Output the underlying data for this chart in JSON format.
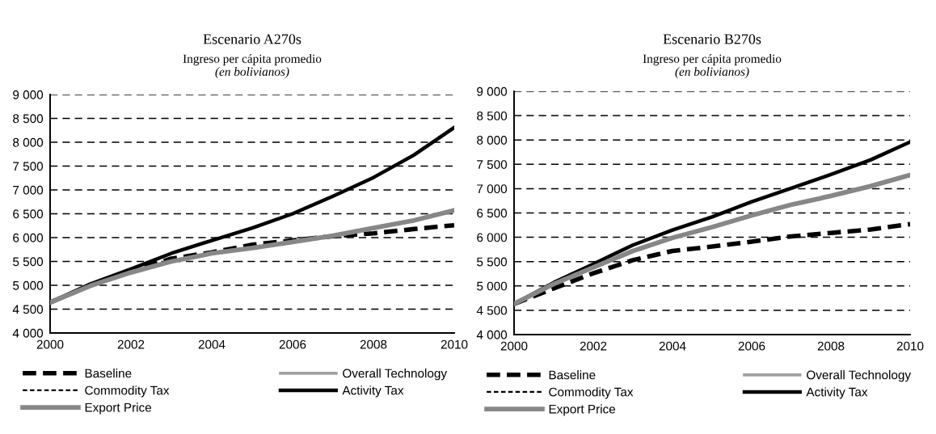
{
  "chart_data": [
    {
      "type": "line",
      "title": "Escenario A270s",
      "subtitle": "Ingreso per cápita promedio",
      "annotations": [
        "(en bolivianos)"
      ],
      "x": [
        2000,
        2001,
        2002,
        2003,
        2004,
        2005,
        2006,
        2007,
        2008,
        2009,
        2010
      ],
      "xlim": [
        2000,
        2010
      ],
      "xticks": [
        2000,
        2002,
        2004,
        2006,
        2008,
        2010
      ],
      "ylim": [
        4000,
        9000
      ],
      "yticks": [
        {
          "value": 4000,
          "label": "4 000"
        },
        {
          "value": 4500,
          "label": "4 500"
        },
        {
          "value": 5000,
          "label": "5 000"
        },
        {
          "value": 5500,
          "label": "5 500"
        },
        {
          "value": 6000,
          "label": "6 000"
        },
        {
          "value": 6500,
          "label": "6 500"
        },
        {
          "value": 7000,
          "label": "7 000"
        },
        {
          "value": 7500,
          "label": "7 500"
        },
        {
          "value": 8000,
          "label": "8 000"
        },
        {
          "value": 8500,
          "label": "8 500"
        },
        {
          "value": 9000,
          "label": "9 000"
        }
      ],
      "grid": "y",
      "legend": "bottom",
      "marker": "none",
      "series": [
        {
          "name": "Baseline",
          "color": "#000000",
          "line_style": "dashed",
          "values": [
            4640,
            5000,
            5290,
            5560,
            5690,
            5850,
            5940,
            6030,
            6090,
            6180,
            6260
          ]
        },
        {
          "name": "Overall Technology",
          "color": "#a0a0a0",
          "line_style": "solid",
          "values": [
            null,
            null,
            null,
            null,
            null,
            null,
            null,
            null,
            null,
            null,
            null
          ]
        },
        {
          "name": "Commodity Tax",
          "color": "#000000",
          "line_style": "dotted",
          "values": [
            null,
            null,
            null,
            null,
            null,
            null,
            null,
            null,
            null,
            null,
            null
          ]
        },
        {
          "name": "Activity Tax",
          "color": "#000000",
          "line_style": "solid",
          "values": [
            4640,
            5030,
            5340,
            5670,
            5940,
            6200,
            6500,
            6870,
            7260,
            7730,
            8310
          ]
        },
        {
          "name": "Export Price",
          "color": "#878787",
          "line_style": "solid",
          "values": [
            4640,
            4990,
            5270,
            5500,
            5670,
            5780,
            5910,
            6040,
            6200,
            6360,
            6570
          ]
        }
      ]
    },
    {
      "type": "line",
      "title": "Escenario B270s",
      "subtitle": "Ingreso per cápita promedio",
      "annotations": [
        "(en bolivianos)"
      ],
      "x": [
        2000,
        2001,
        2002,
        2003,
        2004,
        2005,
        2006,
        2007,
        2008,
        2009,
        2010
      ],
      "xlim": [
        2000,
        2010
      ],
      "xticks": [
        2000,
        2002,
        2004,
        2006,
        2008,
        2010
      ],
      "ylim": [
        4000,
        9000
      ],
      "yticks": [
        {
          "value": 4000,
          "label": "4 000"
        },
        {
          "value": 4500,
          "label": "4 500"
        },
        {
          "value": 5000,
          "label": "5 000"
        },
        {
          "value": 5500,
          "label": "5 500"
        },
        {
          "value": 6000,
          "label": "6 000"
        },
        {
          "value": 6500,
          "label": "6 500"
        },
        {
          "value": 7000,
          "label": "7 000"
        },
        {
          "value": 7500,
          "label": "7 500"
        },
        {
          "value": 8000,
          "label": "8 000"
        },
        {
          "value": 8500,
          "label": "8 500"
        },
        {
          "value": 9000,
          "label": "9 000"
        }
      ],
      "grid": "y",
      "legend": "bottom",
      "marker": "none",
      "series": [
        {
          "name": "Baseline",
          "color": "#000000",
          "line_style": "dashed",
          "values": [
            4630,
            4950,
            5260,
            5530,
            5720,
            5810,
            5910,
            6020,
            6090,
            6160,
            6270
          ]
        },
        {
          "name": "Overall Technology",
          "color": "#a0a0a0",
          "line_style": "solid",
          "values": [
            null,
            null,
            null,
            null,
            null,
            null,
            null,
            null,
            null,
            null,
            null
          ]
        },
        {
          "name": "Commodity Tax",
          "color": "#000000",
          "line_style": "dotted",
          "values": [
            null,
            null,
            null,
            null,
            null,
            null,
            null,
            null,
            null,
            null,
            null
          ]
        },
        {
          "name": "Activity Tax",
          "color": "#000000",
          "line_style": "solid",
          "values": [
            4630,
            5070,
            5450,
            5840,
            6150,
            6420,
            6730,
            7010,
            7290,
            7590,
            7960
          ]
        },
        {
          "name": "Export Price",
          "color": "#878787",
          "line_style": "solid",
          "values": [
            4630,
            5040,
            5380,
            5720,
            5990,
            6210,
            6450,
            6670,
            6850,
            7050,
            7280
          ]
        }
      ]
    }
  ]
}
